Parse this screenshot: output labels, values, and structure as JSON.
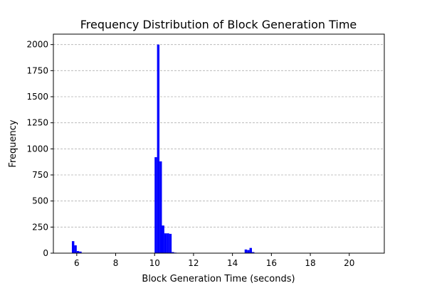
{
  "chart_data": {
    "type": "bar",
    "title": "Frequency Distribution of Block Generation Time",
    "xlabel": "Block Generation Time (seconds)",
    "ylabel": "Frequency",
    "xlim": [
      4.8,
      21.8
    ],
    "ylim": [
      0,
      2100
    ],
    "x_ticks": [
      6,
      8,
      10,
      12,
      14,
      16,
      18,
      20
    ],
    "y_ticks": [
      0,
      250,
      500,
      750,
      1000,
      1250,
      1500,
      1750,
      2000
    ],
    "grid": "y-dashed",
    "bar_color": "#0000ff",
    "bin_width": 0.125,
    "bins": [
      {
        "x": 5.75,
        "value": 115
      },
      {
        "x": 5.875,
        "value": 75
      },
      {
        "x": 6.0,
        "value": 20
      },
      {
        "x": 6.125,
        "value": 15
      },
      {
        "x": 10.0,
        "value": 920
      },
      {
        "x": 10.125,
        "value": 2000
      },
      {
        "x": 10.25,
        "value": 880
      },
      {
        "x": 10.375,
        "value": 265
      },
      {
        "x": 10.5,
        "value": 190
      },
      {
        "x": 10.625,
        "value": 190
      },
      {
        "x": 10.75,
        "value": 185
      },
      {
        "x": 10.875,
        "value": 10
      },
      {
        "x": 11.0,
        "value": 5
      },
      {
        "x": 14.625,
        "value": 35
      },
      {
        "x": 14.75,
        "value": 30
      },
      {
        "x": 14.875,
        "value": 50
      },
      {
        "x": 15.0,
        "value": 10
      }
    ]
  }
}
